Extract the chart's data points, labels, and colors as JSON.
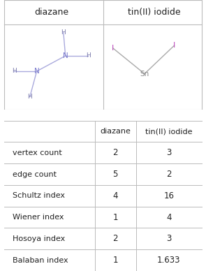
{
  "col1_header": "diazane",
  "col2_header": "tin(II) iodide",
  "rows": [
    {
      "label": "vertex count",
      "v1": "2",
      "v2": "3"
    },
    {
      "label": "edge count",
      "v1": "5",
      "v2": "2"
    },
    {
      "label": "Schultz index",
      "v1": "4",
      "v2": "16"
    },
    {
      "label": "Wiener index",
      "v1": "1",
      "v2": "4"
    },
    {
      "label": "Hosoya index",
      "v1": "2",
      "v2": "3"
    },
    {
      "label": "Balaban index",
      "v1": "1",
      "v2": "1.633"
    }
  ],
  "border_color": "#bbbbbb",
  "text_color": "#222222",
  "mol1_N_color": "#7777cc",
  "mol1_H_color": "#7777aa",
  "mol1_bond_color": "#aaaadd",
  "mol2_Sn_color": "#888888",
  "mol2_I_color": "#bb44bb",
  "mol2_bond_color": "#aaaaaa",
  "mol_panel_border": "#cccccc",
  "gap_color": "#ffffff"
}
